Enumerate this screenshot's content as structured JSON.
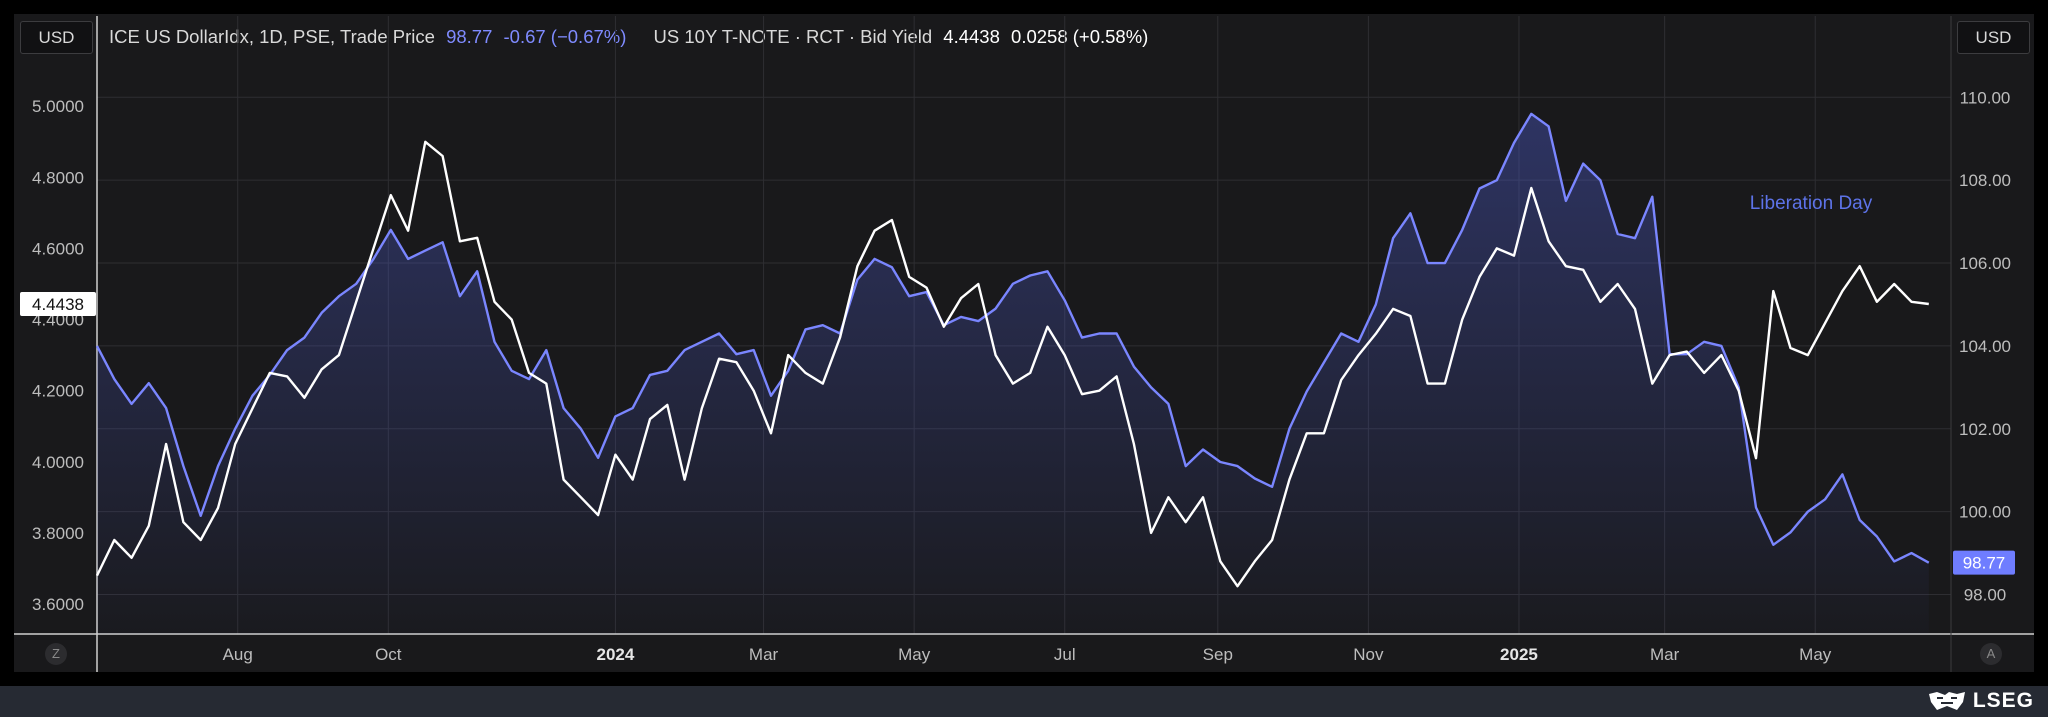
{
  "left_currency": "USD",
  "right_currency": "USD",
  "legend": {
    "dxy_name": "ICE US DollarIdx, 1D, PSE, Trade Price",
    "dxy_last": "98.77",
    "dxy_change": "-0.67 (−0.67%)",
    "tnote_name": "US 10Y T-NOTE · RCT · Bid Yield",
    "tnote_last": "4.4438",
    "tnote_change": "0.0258 (+0.58%)"
  },
  "bottom_left_button": "Z",
  "bottom_right_button": "A",
  "brand": "LSEG",
  "colors": {
    "dxy": "#7a86ff",
    "tnote": "#ffffff",
    "background": "#19191b",
    "grid": "#2e2e32"
  },
  "chart_data": {
    "type": "line",
    "annotation": "Liberation Day",
    "x_ticks": [
      {
        "date": "2023-08-01",
        "label": "Aug"
      },
      {
        "date": "2023-10-01",
        "label": "Oct"
      },
      {
        "date": "2024-01-01",
        "label": "2024",
        "bold": true
      },
      {
        "date": "2024-03-01",
        "label": "Mar"
      },
      {
        "date": "2024-05-01",
        "label": "May"
      },
      {
        "date": "2024-07-01",
        "label": "Jul"
      },
      {
        "date": "2024-09-01",
        "label": "Sep"
      },
      {
        "date": "2024-11-01",
        "label": "Nov"
      },
      {
        "date": "2025-01-01",
        "label": "2025",
        "bold": true
      },
      {
        "date": "2025-03-01",
        "label": "Mar"
      },
      {
        "date": "2025-05-01",
        "label": "May"
      }
    ],
    "x_range": [
      "2023-06-05",
      "2025-06-25"
    ],
    "left_axis": {
      "ticks": [
        "3.6000",
        "3.8000",
        "4.0000",
        "4.2000",
        "4.4000",
        "4.6000",
        "4.8000",
        "5.0000"
      ],
      "ylim": [
        3.51,
        5.13
      ]
    },
    "right_axis": {
      "ticks": [
        "98.00",
        "100.00",
        "102.00",
        "104.00",
        "106.00",
        "108.00",
        "110.00"
      ],
      "ylim": [
        97.0,
        110.9
      ]
    },
    "series": [
      {
        "name": "ICE US DollarIdx",
        "axis": "right",
        "last_value": "98.77",
        "points": [
          [
            "2023-06-05",
            104.0
          ],
          [
            "2023-06-12",
            103.2
          ],
          [
            "2023-06-19",
            102.6
          ],
          [
            "2023-06-26",
            103.1
          ],
          [
            "2023-07-03",
            102.5
          ],
          [
            "2023-07-10",
            101.1
          ],
          [
            "2023-07-17",
            99.9
          ],
          [
            "2023-07-24",
            101.1
          ],
          [
            "2023-07-31",
            102.0
          ],
          [
            "2023-08-07",
            102.8
          ],
          [
            "2023-08-14",
            103.3
          ],
          [
            "2023-08-21",
            103.9
          ],
          [
            "2023-08-28",
            104.2
          ],
          [
            "2023-09-04",
            104.8
          ],
          [
            "2023-09-11",
            105.2
          ],
          [
            "2023-09-18",
            105.5
          ],
          [
            "2023-09-25",
            106.1
          ],
          [
            "2023-10-02",
            106.8
          ],
          [
            "2023-10-09",
            106.1
          ],
          [
            "2023-10-16",
            106.3
          ],
          [
            "2023-10-23",
            106.5
          ],
          [
            "2023-10-30",
            105.2
          ],
          [
            "2023-11-06",
            105.8
          ],
          [
            "2023-11-13",
            104.1
          ],
          [
            "2023-11-20",
            103.4
          ],
          [
            "2023-11-27",
            103.2
          ],
          [
            "2023-12-04",
            103.9
          ],
          [
            "2023-12-11",
            102.5
          ],
          [
            "2023-12-18",
            102.0
          ],
          [
            "2023-12-25",
            101.3
          ],
          [
            "2024-01-01",
            102.3
          ],
          [
            "2024-01-08",
            102.5
          ],
          [
            "2024-01-15",
            103.3
          ],
          [
            "2024-01-22",
            103.4
          ],
          [
            "2024-01-29",
            103.9
          ],
          [
            "2024-02-05",
            104.1
          ],
          [
            "2024-02-12",
            104.3
          ],
          [
            "2024-02-19",
            103.8
          ],
          [
            "2024-02-26",
            103.9
          ],
          [
            "2024-03-04",
            102.8
          ],
          [
            "2024-03-11",
            103.4
          ],
          [
            "2024-03-18",
            104.4
          ],
          [
            "2024-03-25",
            104.5
          ],
          [
            "2024-04-01",
            104.3
          ],
          [
            "2024-04-08",
            105.6
          ],
          [
            "2024-04-15",
            106.1
          ],
          [
            "2024-04-22",
            105.9
          ],
          [
            "2024-04-29",
            105.2
          ],
          [
            "2024-05-06",
            105.3
          ],
          [
            "2024-05-13",
            104.5
          ],
          [
            "2024-05-20",
            104.7
          ],
          [
            "2024-05-27",
            104.6
          ],
          [
            "2024-06-03",
            104.9
          ],
          [
            "2024-06-10",
            105.5
          ],
          [
            "2024-06-17",
            105.7
          ],
          [
            "2024-06-24",
            105.8
          ],
          [
            "2024-07-01",
            105.1
          ],
          [
            "2024-07-08",
            104.2
          ],
          [
            "2024-07-15",
            104.3
          ],
          [
            "2024-07-22",
            104.3
          ],
          [
            "2024-07-29",
            103.5
          ],
          [
            "2024-08-05",
            103.0
          ],
          [
            "2024-08-12",
            102.6
          ],
          [
            "2024-08-19",
            101.1
          ],
          [
            "2024-08-26",
            101.5
          ],
          [
            "2024-09-02",
            101.2
          ],
          [
            "2024-09-09",
            101.1
          ],
          [
            "2024-09-16",
            100.8
          ],
          [
            "2024-09-23",
            100.6
          ],
          [
            "2024-09-30",
            102.0
          ],
          [
            "2024-10-07",
            102.9
          ],
          [
            "2024-10-14",
            103.6
          ],
          [
            "2024-10-21",
            104.3
          ],
          [
            "2024-10-28",
            104.1
          ],
          [
            "2024-11-04",
            105.0
          ],
          [
            "2024-11-11",
            106.6
          ],
          [
            "2024-11-18",
            107.2
          ],
          [
            "2024-11-25",
            106.0
          ],
          [
            "2024-12-02",
            106.0
          ],
          [
            "2024-12-09",
            106.8
          ],
          [
            "2024-12-16",
            107.8
          ],
          [
            "2024-12-23",
            108.0
          ],
          [
            "2024-12-30",
            108.9
          ],
          [
            "2025-01-06",
            109.6
          ],
          [
            "2025-01-13",
            109.3
          ],
          [
            "2025-01-20",
            107.5
          ],
          [
            "2025-01-27",
            108.4
          ],
          [
            "2025-02-03",
            108.0
          ],
          [
            "2025-02-10",
            106.7
          ],
          [
            "2025-02-17",
            106.6
          ],
          [
            "2025-02-24",
            107.6
          ],
          [
            "2025-03-03",
            103.8
          ],
          [
            "2025-03-10",
            103.8
          ],
          [
            "2025-03-17",
            104.1
          ],
          [
            "2025-03-24",
            104.0
          ],
          [
            "2025-03-31",
            103.0
          ],
          [
            "2025-04-07",
            100.1
          ],
          [
            "2025-04-14",
            99.2
          ],
          [
            "2025-04-21",
            99.5
          ],
          [
            "2025-04-28",
            100.0
          ],
          [
            "2025-05-05",
            100.3
          ],
          [
            "2025-05-12",
            100.9
          ],
          [
            "2025-05-19",
            99.8
          ],
          [
            "2025-05-26",
            99.4
          ],
          [
            "2025-06-02",
            98.8
          ],
          [
            "2025-06-09",
            99.0
          ],
          [
            "2025-06-16",
            98.77
          ]
        ]
      },
      {
        "name": "US 10Y T-NOTE",
        "axis": "left",
        "last_value": "4.4438",
        "points": [
          [
            "2023-06-05",
            3.68
          ],
          [
            "2023-06-12",
            3.78
          ],
          [
            "2023-06-19",
            3.73
          ],
          [
            "2023-06-26",
            3.82
          ],
          [
            "2023-07-03",
            4.05
          ],
          [
            "2023-07-10",
            3.83
          ],
          [
            "2023-07-17",
            3.78
          ],
          [
            "2023-07-24",
            3.87
          ],
          [
            "2023-07-31",
            4.05
          ],
          [
            "2023-08-07",
            4.15
          ],
          [
            "2023-08-14",
            4.25
          ],
          [
            "2023-08-21",
            4.24
          ],
          [
            "2023-08-28",
            4.18
          ],
          [
            "2023-09-04",
            4.26
          ],
          [
            "2023-09-11",
            4.3
          ],
          [
            "2023-09-18",
            4.45
          ],
          [
            "2023-09-25",
            4.6
          ],
          [
            "2023-10-02",
            4.75
          ],
          [
            "2023-10-09",
            4.65
          ],
          [
            "2023-10-16",
            4.9
          ],
          [
            "2023-10-23",
            4.86
          ],
          [
            "2023-10-30",
            4.62
          ],
          [
            "2023-11-06",
            4.63
          ],
          [
            "2023-11-13",
            4.45
          ],
          [
            "2023-11-20",
            4.4
          ],
          [
            "2023-11-27",
            4.25
          ],
          [
            "2023-12-04",
            4.22
          ],
          [
            "2023-12-11",
            3.95
          ],
          [
            "2023-12-18",
            3.9
          ],
          [
            "2023-12-25",
            3.85
          ],
          [
            "2024-01-01",
            4.02
          ],
          [
            "2024-01-08",
            3.95
          ],
          [
            "2024-01-15",
            4.12
          ],
          [
            "2024-01-22",
            4.16
          ],
          [
            "2024-01-29",
            3.95
          ],
          [
            "2024-02-05",
            4.15
          ],
          [
            "2024-02-12",
            4.29
          ],
          [
            "2024-02-19",
            4.28
          ],
          [
            "2024-02-26",
            4.2
          ],
          [
            "2024-03-04",
            4.08
          ],
          [
            "2024-03-11",
            4.3
          ],
          [
            "2024-03-18",
            4.25
          ],
          [
            "2024-03-25",
            4.22
          ],
          [
            "2024-04-01",
            4.35
          ],
          [
            "2024-04-08",
            4.55
          ],
          [
            "2024-04-15",
            4.65
          ],
          [
            "2024-04-22",
            4.68
          ],
          [
            "2024-04-29",
            4.52
          ],
          [
            "2024-05-06",
            4.49
          ],
          [
            "2024-05-13",
            4.38
          ],
          [
            "2024-05-20",
            4.46
          ],
          [
            "2024-05-27",
            4.5
          ],
          [
            "2024-06-03",
            4.3
          ],
          [
            "2024-06-10",
            4.22
          ],
          [
            "2024-06-17",
            4.25
          ],
          [
            "2024-06-24",
            4.38
          ],
          [
            "2024-07-01",
            4.3
          ],
          [
            "2024-07-08",
            4.19
          ],
          [
            "2024-07-15",
            4.2
          ],
          [
            "2024-07-22",
            4.24
          ],
          [
            "2024-07-29",
            4.05
          ],
          [
            "2024-08-05",
            3.8
          ],
          [
            "2024-08-12",
            3.9
          ],
          [
            "2024-08-19",
            3.83
          ],
          [
            "2024-08-26",
            3.9
          ],
          [
            "2024-09-02",
            3.72
          ],
          [
            "2024-09-09",
            3.65
          ],
          [
            "2024-09-16",
            3.72
          ],
          [
            "2024-09-23",
            3.78
          ],
          [
            "2024-09-30",
            3.95
          ],
          [
            "2024-10-07",
            4.08
          ],
          [
            "2024-10-14",
            4.08
          ],
          [
            "2024-10-21",
            4.23
          ],
          [
            "2024-10-28",
            4.3
          ],
          [
            "2024-11-04",
            4.36
          ],
          [
            "2024-11-11",
            4.43
          ],
          [
            "2024-11-18",
            4.41
          ],
          [
            "2024-11-25",
            4.22
          ],
          [
            "2024-12-02",
            4.22
          ],
          [
            "2024-12-09",
            4.4
          ],
          [
            "2024-12-16",
            4.52
          ],
          [
            "2024-12-23",
            4.6
          ],
          [
            "2024-12-30",
            4.58
          ],
          [
            "2025-01-06",
            4.77
          ],
          [
            "2025-01-13",
            4.62
          ],
          [
            "2025-01-20",
            4.55
          ],
          [
            "2025-01-27",
            4.54
          ],
          [
            "2025-02-03",
            4.45
          ],
          [
            "2025-02-10",
            4.5
          ],
          [
            "2025-02-17",
            4.43
          ],
          [
            "2025-02-24",
            4.22
          ],
          [
            "2025-03-03",
            4.3
          ],
          [
            "2025-03-10",
            4.31
          ],
          [
            "2025-03-17",
            4.25
          ],
          [
            "2025-03-24",
            4.3
          ],
          [
            "2025-03-31",
            4.2
          ],
          [
            "2025-04-07",
            4.01
          ],
          [
            "2025-04-14",
            4.48
          ],
          [
            "2025-04-21",
            4.32
          ],
          [
            "2025-04-28",
            4.3
          ],
          [
            "2025-05-05",
            4.39
          ],
          [
            "2025-05-12",
            4.48
          ],
          [
            "2025-05-19",
            4.55
          ],
          [
            "2025-05-26",
            4.45
          ],
          [
            "2025-06-02",
            4.5
          ],
          [
            "2025-06-09",
            4.45
          ],
          [
            "2025-06-16",
            4.4438
          ]
        ]
      }
    ]
  }
}
